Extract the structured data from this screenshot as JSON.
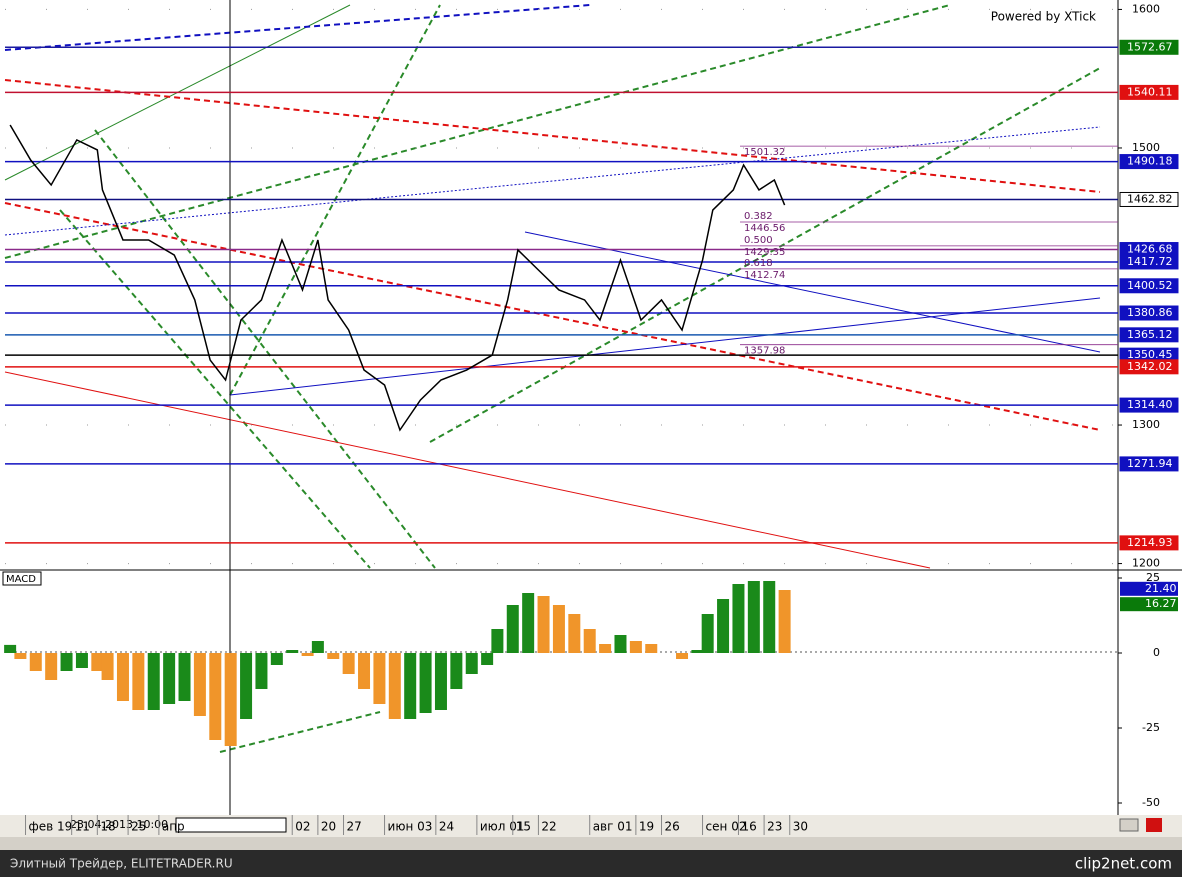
{
  "header": {
    "powered": "Powered by XTick",
    "macd_label": "MACD",
    "crosshair_label": "23.04.2013 10:00"
  },
  "footer": {
    "left": "Элитный Трейдер, ELITETRADER.RU",
    "right": "clip2net.com"
  },
  "chart_data": [
    {
      "type": "line",
      "name": "price",
      "x": [
        1,
        5,
        9,
        14,
        18,
        19,
        23,
        28,
        33,
        37,
        40,
        43,
        46,
        50,
        54,
        58,
        61,
        63,
        67,
        70,
        74,
        77,
        81,
        85,
        90,
        95,
        98,
        100,
        104,
        108,
        113,
        116,
        120,
        124,
        128,
        132,
        136,
        138,
        142,
        144,
        147,
        150,
        152
      ],
      "values": [
        1516.6,
        1491.3,
        1473.3,
        1505.8,
        1498.6,
        1469.7,
        1433.6,
        1433.6,
        1422.7,
        1390.3,
        1346.9,
        1332.5,
        1375.8,
        1390.3,
        1433.6,
        1397.5,
        1433.6,
        1390.3,
        1368.6,
        1339.7,
        1328.9,
        1296.4,
        1318.1,
        1332.5,
        1339.7,
        1350.5,
        1390.3,
        1426.4,
        1411.9,
        1397.5,
        1390.3,
        1375.8,
        1419.1,
        1375.8,
        1390.3,
        1368.6,
        1419.1,
        1455.2,
        1469.7,
        1487.7,
        1469.7,
        1476.9,
        1458.8
      ],
      "color": "#000000",
      "xlim": [
        0,
        217
      ],
      "ylim": [
        1196.8,
        1603.2
      ],
      "yticks": [
        1600,
        1500,
        1300,
        1200
      ],
      "xticks": [
        {
          "value": 4,
          "label": "фев 19"
        },
        {
          "value": 13,
          "label": "11"
        },
        {
          "value": 18,
          "label": "18"
        },
        {
          "value": 24,
          "label": "25"
        },
        {
          "value": 30,
          "label": "апр"
        },
        {
          "value": 56,
          "label": "02"
        },
        {
          "value": 61,
          "label": "20"
        },
        {
          "value": 66,
          "label": "27"
        },
        {
          "value": 74,
          "label": "июн 03"
        },
        {
          "value": 84,
          "label": "24"
        },
        {
          "value": 92,
          "label": "июл 01"
        },
        {
          "value": 99,
          "label": "15"
        },
        {
          "value": 104,
          "label": "22"
        },
        {
          "value": 114,
          "label": "авг 01"
        },
        {
          "value": 123,
          "label": "19"
        },
        {
          "value": 128,
          "label": "26"
        },
        {
          "value": 136,
          "label": "сен 02"
        },
        {
          "value": 143,
          "label": "16"
        },
        {
          "value": 148,
          "label": "23"
        },
        {
          "value": 153,
          "label": "30"
        }
      ],
      "grid": true,
      "levels": [
        {
          "value": 1572.67,
          "label": "1572.67",
          "color": "#0a7a0a",
          "line": "#1a1aa0"
        },
        {
          "value": 1540.11,
          "label": "1540.11",
          "color": "#e01010",
          "line": "#c01030"
        },
        {
          "value": 1490.18,
          "label": "1490.18",
          "color": "#1010c0",
          "line": "#1010c0"
        },
        {
          "value": 1462.82,
          "label": "1462.82",
          "color": "#ffffff",
          "line": "#101080"
        },
        {
          "value": 1426.68,
          "label": "1426.68",
          "color": "#1010c0",
          "line": "#8a2a8a"
        },
        {
          "value": 1417.72,
          "label": "1417.72",
          "color": "#1010c0",
          "line": "#1010c0"
        },
        {
          "value": 1400.52,
          "label": "1400.52",
          "color": "#1010c0",
          "line": "#1010c0"
        },
        {
          "value": 1380.86,
          "label": "1380.86",
          "color": "#1010c0",
          "line": "#1010c0"
        },
        {
          "value": 1365.12,
          "label": "1365.12",
          "color": "#1010c0",
          "line": "#1a5ab0"
        },
        {
          "value": 1350.45,
          "label": "1350.45",
          "color": "#1010c0",
          "line": "#000000"
        },
        {
          "value": 1342.02,
          "label": "1342.02",
          "color": "#e01010",
          "line": "#e01010"
        },
        {
          "value": 1314.4,
          "label": "1314.40",
          "color": "#1010c0",
          "line": "#1010c0"
        },
        {
          "value": 1271.94,
          "label": "1271.94",
          "color": "#1010c0",
          "line": "#1010c0"
        },
        {
          "value": 1214.93,
          "label": "1214.93",
          "color": "#e01010",
          "line": "#e01010"
        }
      ],
      "fib": [
        {
          "level": 1501.32,
          "ratio": null
        },
        {
          "level": 1446.56,
          "ratio": "0.382"
        },
        {
          "level": 1429.35,
          "ratio": "0.500"
        },
        {
          "level": 1412.74,
          "ratio": "0.618"
        },
        {
          "level": 1357.98,
          "ratio": null
        }
      ]
    },
    {
      "type": "bar",
      "name": "macd",
      "x": [
        1,
        3,
        6,
        9,
        12,
        15,
        18,
        20,
        23,
        26,
        29,
        32,
        35,
        38,
        41,
        44,
        47,
        50,
        53,
        56,
        59,
        61,
        64,
        67,
        70,
        73,
        76,
        79,
        82,
        85,
        88,
        91,
        94,
        96,
        99,
        102,
        105,
        108,
        111,
        114,
        117,
        120,
        123,
        126,
        129,
        132,
        135,
        137,
        140,
        143,
        146,
        149,
        152
      ],
      "values": [
        2.7,
        -2,
        -6,
        -9,
        -6,
        -5,
        -6,
        -9,
        -16,
        -19,
        -19,
        -17,
        -16,
        -21,
        -29,
        -31,
        -22,
        -12,
        -4,
        1,
        -1,
        4,
        -2,
        -7,
        -12,
        -17,
        -22,
        -22,
        -20,
        -19,
        -12,
        -7,
        -4,
        8,
        16,
        20,
        19,
        16,
        13,
        8,
        3,
        6,
        4,
        3,
        0,
        -2,
        1,
        13,
        18,
        23,
        24,
        24,
        21
      ],
      "colors": [
        "#1a8a1a",
        "#f0952a"
      ],
      "xlim": [
        0,
        217
      ],
      "ylim": [
        -54,
        27
      ],
      "yticks": [
        25,
        0,
        -25,
        -50
      ],
      "tags": [
        {
          "value": 21.4,
          "label": "21.40",
          "color": "#1010c0"
        },
        {
          "value": 16.27,
          "label": "16.27",
          "color": "#0a7a0a"
        }
      ]
    }
  ]
}
